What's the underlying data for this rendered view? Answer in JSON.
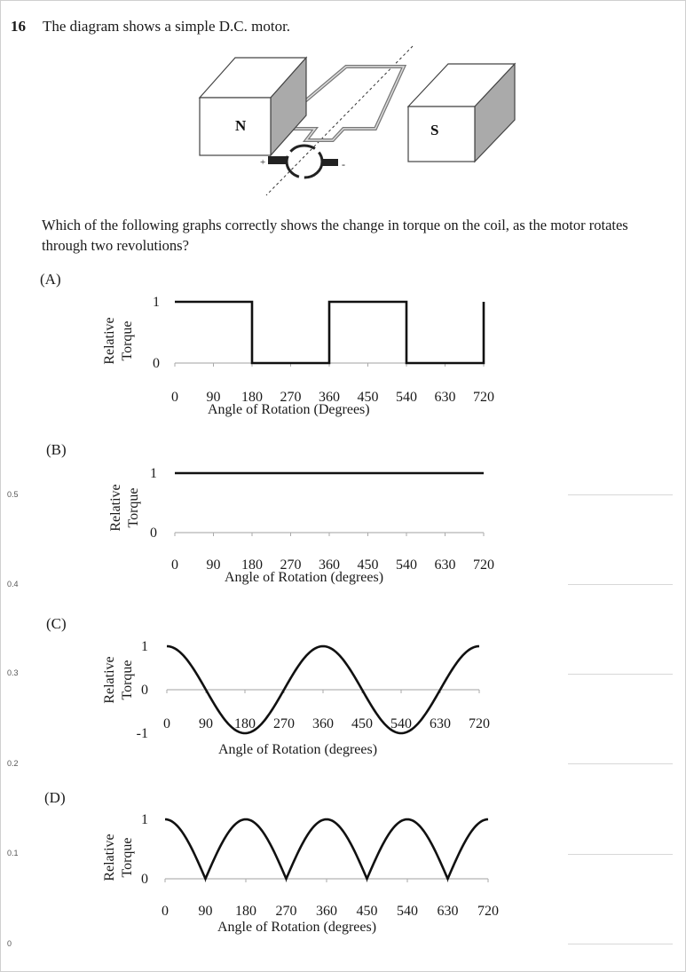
{
  "question": {
    "number": "16",
    "stem": "The diagram shows a simple D.C. motor.",
    "prompt": "Which of the following graphs correctly shows the change in torque on the coil, as the motor rotates through two revolutions?"
  },
  "diagram": {
    "north_label": "N",
    "south_label": "S",
    "plus_label": "+",
    "minus_label": "-"
  },
  "background_axis": {
    "ticks": [
      "0.5",
      "0.4",
      "0.3",
      "0.2",
      "0.1",
      "0"
    ]
  },
  "chart_data": [
    {
      "option": "(A)",
      "type": "line",
      "shape": "square-wave",
      "x": [
        0,
        180,
        180,
        360,
        360,
        540,
        540,
        720,
        720
      ],
      "y": [
        1,
        1,
        0,
        0,
        1,
        1,
        0,
        0,
        1
      ],
      "x_ticks": [
        "0",
        "90",
        "180",
        "270",
        "360",
        "450",
        "540",
        "630",
        "720"
      ],
      "y_ticks": [
        "1",
        "0"
      ],
      "xlabel": "Angle of Rotation (Degrees)",
      "ylabel": "Relative Torque",
      "xlim": [
        0,
        720
      ],
      "ylim": [
        0,
        1
      ]
    },
    {
      "option": "(B)",
      "type": "line",
      "shape": "constant",
      "x": [
        0,
        720
      ],
      "y": [
        1,
        1
      ],
      "x_ticks": [
        "0",
        "90",
        "180",
        "270",
        "360",
        "450",
        "540",
        "630",
        "720"
      ],
      "y_ticks": [
        "1",
        "0"
      ],
      "xlabel": "Angle of Rotation (degrees)",
      "ylabel": "Relative Torque",
      "xlim": [
        0,
        720
      ],
      "ylim": [
        0,
        1
      ]
    },
    {
      "option": "(C)",
      "type": "line",
      "shape": "cosine",
      "x": [
        0,
        90,
        180,
        270,
        360,
        450,
        540,
        630,
        720
      ],
      "y": [
        1,
        0,
        -1,
        0,
        1,
        0,
        -1,
        0,
        1
      ],
      "x_ticks": [
        "0",
        "90",
        "180",
        "270",
        "360",
        "450",
        "540",
        "630",
        "720"
      ],
      "y_ticks": [
        "1",
        "0",
        "-1"
      ],
      "xlabel": "Angle of Rotation (degrees)",
      "ylabel": "Relative Torque",
      "xlim": [
        0,
        720
      ],
      "ylim": [
        -1,
        1
      ]
    },
    {
      "option": "(D)",
      "type": "line",
      "shape": "absolute-cosine",
      "x": [
        0,
        90,
        180,
        270,
        360,
        450,
        540,
        630,
        720
      ],
      "y": [
        1,
        0,
        1,
        0,
        1,
        0,
        1,
        0,
        1
      ],
      "x_ticks": [
        "0",
        "90",
        "180",
        "270",
        "360",
        "450",
        "540",
        "630",
        "720"
      ],
      "y_ticks": [
        "1",
        "0"
      ],
      "xlabel": "Angle of Rotation (degrees)",
      "ylabel": "Relative Torque",
      "xlim": [
        0,
        720
      ],
      "ylim": [
        0,
        1
      ]
    }
  ]
}
